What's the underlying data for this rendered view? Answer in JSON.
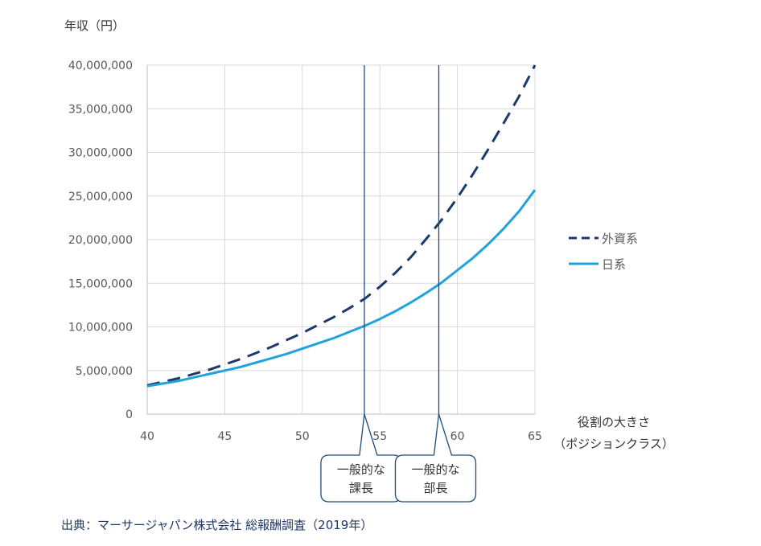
{
  "chart_data": {
    "type": "line",
    "ylabel": "年収（円）",
    "xlabel": [
      "役割の大きさ",
      "（ポジションクラス）"
    ],
    "xlim": [
      40,
      65
    ],
    "ylim": [
      0,
      40000000
    ],
    "x_ticks": [
      40,
      45,
      50,
      55,
      60,
      65
    ],
    "y_ticks": [
      0,
      5000000,
      10000000,
      15000000,
      20000000,
      25000000,
      30000000,
      35000000,
      40000000
    ],
    "y_tick_labels": [
      "0",
      "5,000,000",
      "10,000,000",
      "15,000,000",
      "20,000,000",
      "25,000,000",
      "30,000,000",
      "35,000,000",
      "40,000,000"
    ],
    "grid": true,
    "legend_position": "right",
    "series": [
      {
        "name": "外資系",
        "style": "dashed",
        "color": "#1b3a6b",
        "x": [
          40,
          41,
          42,
          43,
          44,
          45,
          46,
          47,
          48,
          49,
          50,
          51,
          52,
          53,
          54,
          55,
          56,
          57,
          58,
          59,
          60,
          61,
          62,
          63,
          64,
          65
        ],
        "y": [
          3300000,
          3700000,
          4100000,
          4600000,
          5100000,
          5700000,
          6300000,
          7000000,
          7700000,
          8500000,
          9300000,
          10200000,
          11100000,
          12100000,
          13200000,
          14600000,
          16200000,
          18000000,
          20100000,
          22300000,
          24800000,
          27500000,
          30400000,
          33400000,
          36500000,
          40000000
        ]
      },
      {
        "name": "日系",
        "style": "solid",
        "color": "#1fa3dc",
        "x": [
          40,
          41,
          42,
          43,
          44,
          45,
          46,
          47,
          48,
          49,
          50,
          51,
          52,
          53,
          54,
          55,
          56,
          57,
          58,
          59,
          60,
          61,
          62,
          63,
          64,
          65
        ],
        "y": [
          3200000,
          3500000,
          3800000,
          4200000,
          4600000,
          5000000,
          5400000,
          5900000,
          6400000,
          6900000,
          7500000,
          8100000,
          8700000,
          9400000,
          10100000,
          10900000,
          11800000,
          12800000,
          13900000,
          15100000,
          16500000,
          17900000,
          19500000,
          21300000,
          23300000,
          25700000
        ]
      }
    ],
    "markers": [
      {
        "x": 54,
        "label": [
          "一般的な",
          "課長"
        ]
      },
      {
        "x": 58.8,
        "label": [
          "一般的な",
          "部長"
        ]
      }
    ]
  },
  "source": "出典：マーサージャパン株式会社 総報酬調査（2019年）"
}
